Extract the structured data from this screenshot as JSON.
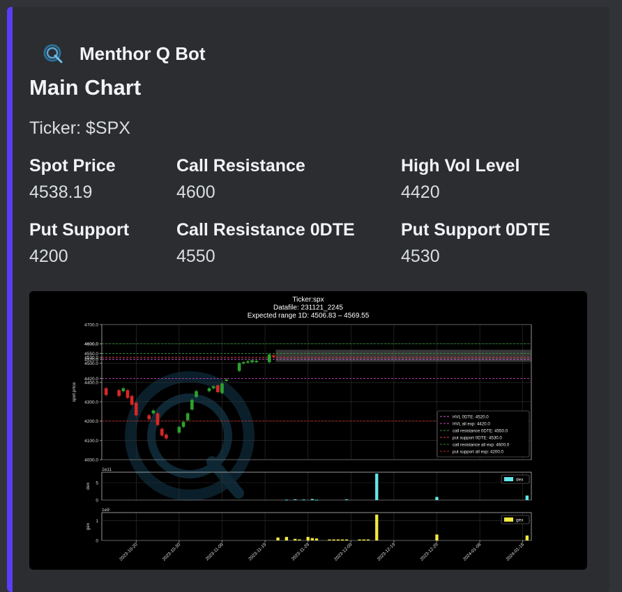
{
  "author": {
    "name": "Menthor Q Bot"
  },
  "embed": {
    "title": "Main Chart",
    "description": "Ticker: $SPX",
    "accent_color": "#5b3df5",
    "fields": [
      {
        "name": "Spot Price",
        "value": "4538.19"
      },
      {
        "name": "Call Resistance",
        "value": "4600"
      },
      {
        "name": "High Vol Level",
        "value": "4420"
      },
      {
        "name": "Put Support",
        "value": "4200"
      },
      {
        "name": "Call Resistance 0DTE",
        "value": "4550"
      },
      {
        "name": "Put Support 0DTE",
        "value": "4530"
      }
    ]
  },
  "chart_data": {
    "type": "candlestick",
    "title_lines": [
      "Ticker:spx",
      "Datafile: 231121_2245",
      "Expected range 1D: 4506.83 – 4569.55"
    ],
    "ylabel": "spot price",
    "ylim": [
      4000,
      4700
    ],
    "yticks": [
      "4000.0",
      "4100.0",
      "4200.0",
      "4300.0",
      "4400.0",
      "4500.0",
      "4600.0",
      "4700.0"
    ],
    "level_ticks": [
      "4420.0",
      "4520.0",
      "4530.0",
      "4550.0",
      "4600.0"
    ],
    "xticks": [
      "2023-10-20",
      "2023-10-30",
      "2023-11-09",
      "2023-11-19",
      "2023-11-29",
      "2023-12-09",
      "2023-12-19",
      "2023-12-29",
      "2024-01-08",
      "2024-01-18"
    ],
    "date_start": "2023-10-12",
    "date_end": "2024-01-20",
    "expected_range": [
      4506.83,
      4569.55
    ],
    "candles": [
      {
        "date": "2023-10-13",
        "o": 4370,
        "c": 4335
      },
      {
        "date": "2023-10-16",
        "o": 4360,
        "c": 4330
      },
      {
        "date": "2023-10-17",
        "o": 4355,
        "c": 4370
      },
      {
        "date": "2023-10-18",
        "o": 4360,
        "c": 4320
      },
      {
        "date": "2023-10-19",
        "o": 4330,
        "c": 4285
      },
      {
        "date": "2023-10-20",
        "o": 4295,
        "c": 4230
      },
      {
        "date": "2023-10-23",
        "o": 4230,
        "c": 4210
      },
      {
        "date": "2023-10-24",
        "o": 4240,
        "c": 4255
      },
      {
        "date": "2023-10-25",
        "o": 4240,
        "c": 4180
      },
      {
        "date": "2023-10-26",
        "o": 4160,
        "c": 4125
      },
      {
        "date": "2023-10-27",
        "o": 4130,
        "c": 4110
      },
      {
        "date": "2023-10-30",
        "o": 4140,
        "c": 4170
      },
      {
        "date": "2023-10-31",
        "o": 4170,
        "c": 4195
      },
      {
        "date": "2023-11-01",
        "o": 4205,
        "c": 4240
      },
      {
        "date": "2023-11-02",
        "o": 4260,
        "c": 4310
      },
      {
        "date": "2023-11-03",
        "o": 4325,
        "c": 4355
      },
      {
        "date": "2023-11-06",
        "o": 4355,
        "c": 4370
      },
      {
        "date": "2023-11-07",
        "o": 4370,
        "c": 4380
      },
      {
        "date": "2023-11-08",
        "o": 4385,
        "c": 4350
      },
      {
        "date": "2023-11-09",
        "o": 4345,
        "c": 4395
      },
      {
        "date": "2023-11-10",
        "o": 4410,
        "c": 4415
      },
      {
        "date": "2023-11-13",
        "o": 4460,
        "c": 4500
      },
      {
        "date": "2023-11-14",
        "o": 4500,
        "c": 4505
      },
      {
        "date": "2023-11-15",
        "o": 4505,
        "c": 4510
      },
      {
        "date": "2023-11-16",
        "o": 4505,
        "c": 4515
      },
      {
        "date": "2023-11-17",
        "o": 4510,
        "c": 4512
      },
      {
        "date": "2023-11-20",
        "o": 4505,
        "c": 4545
      },
      {
        "date": "2023-11-21",
        "o": 4540,
        "c": 4535
      }
    ],
    "levels": [
      {
        "label": "HVL 0DTE: 4520.0",
        "value": 4520,
        "color": "#d25ad2"
      },
      {
        "label": "HVL all exp: 4420.0",
        "value": 4420,
        "color": "#c040c0"
      },
      {
        "label": "call resistance 0DTE: 4550.0",
        "value": 4550,
        "color": "#3a9a3a"
      },
      {
        "label": "put support 0DTE: 4530.0",
        "value": 4530,
        "color": "#e03a3a"
      },
      {
        "label": "call resistance all exp: 4600.0",
        "value": 4600,
        "color": "#2e8b2e"
      },
      {
        "label": "put support all exp: 4200.0",
        "value": 4200,
        "color": "#c02a2a"
      }
    ],
    "dex": {
      "label": "dex",
      "multiplier": "1e11",
      "yticks": [
        "0",
        "5"
      ],
      "ylim": [
        0,
        8
      ],
      "color": "#63e6ea",
      "bars": [
        {
          "date": "2023-11-24",
          "value": 0.1
        },
        {
          "date": "2023-11-26",
          "value": 0.2
        },
        {
          "date": "2023-11-28",
          "value": 0.15
        },
        {
          "date": "2023-11-30",
          "value": 0.3
        },
        {
          "date": "2023-12-01",
          "value": 0.1
        },
        {
          "date": "2023-12-08",
          "value": 0.2
        },
        {
          "date": "2023-12-15",
          "value": 7.6
        },
        {
          "date": "2023-12-29",
          "value": 0.9
        },
        {
          "date": "2024-01-19",
          "value": 1.3
        }
      ]
    },
    "gex": {
      "label": "gex",
      "multiplier": "1e9",
      "yticks": [
        "0",
        "1"
      ],
      "ylim": [
        0,
        1.4
      ],
      "color": "#f2e840",
      "bars": [
        {
          "date": "2023-11-22",
          "value": 0.15
        },
        {
          "date": "2023-11-24",
          "value": 0.18
        },
        {
          "date": "2023-11-26",
          "value": 0.08
        },
        {
          "date": "2023-11-27",
          "value": 0.05
        },
        {
          "date": "2023-11-29",
          "value": 0.18
        },
        {
          "date": "2023-11-30",
          "value": 0.12
        },
        {
          "date": "2023-12-01",
          "value": 0.1
        },
        {
          "date": "2023-12-04",
          "value": 0.05
        },
        {
          "date": "2023-12-05",
          "value": 0.05
        },
        {
          "date": "2023-12-06",
          "value": 0.05
        },
        {
          "date": "2023-12-07",
          "value": 0.05
        },
        {
          "date": "2023-12-08",
          "value": 0.05
        },
        {
          "date": "2023-12-11",
          "value": 0.05
        },
        {
          "date": "2023-12-12",
          "value": 0.05
        },
        {
          "date": "2023-12-13",
          "value": 0.05
        },
        {
          "date": "2023-12-15",
          "value": 1.3
        },
        {
          "date": "2023-12-29",
          "value": 0.3
        },
        {
          "date": "2024-01-19",
          "value": 0.25
        }
      ]
    }
  }
}
